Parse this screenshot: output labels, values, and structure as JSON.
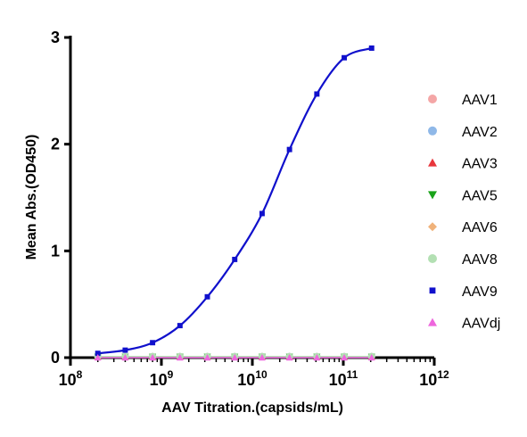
{
  "chart_data": {
    "type": "scatter",
    "title": "",
    "xlabel": "AAV Titration.(capsids/mL)",
    "ylabel": "Mean Abs.(OD450)",
    "xscale": "log",
    "xlim": [
      100000000,
      1000000000000
    ],
    "ylim": [
      0,
      3
    ],
    "x_ticks": [
      {
        "base": "10",
        "exp": "8"
      },
      {
        "base": "10",
        "exp": "9"
      },
      {
        "base": "10",
        "exp": "10"
      },
      {
        "base": "10",
        "exp": "11"
      },
      {
        "base": "10",
        "exp": "12"
      }
    ],
    "y_ticks": [
      "0",
      "1",
      "2",
      "3"
    ],
    "grid": false,
    "legend_position": "right",
    "x": [
      200000000,
      400000000,
      800000000,
      1600000000,
      3200000000,
      6400000000,
      12800000000,
      25600000000,
      51200000000,
      102400000000,
      204800000000
    ],
    "series": [
      {
        "name": "AAV1",
        "color": "#f4a6a6",
        "marker": "circle",
        "values": [
          0.01,
          0.01,
          0.01,
          0.01,
          0.01,
          0.01,
          0.01,
          0.01,
          0.01,
          0.01,
          0.01
        ]
      },
      {
        "name": "AAV2",
        "color": "#8fb8e8",
        "marker": "circle",
        "values": [
          0.01,
          0.01,
          0.01,
          0.01,
          0.01,
          0.01,
          0.01,
          0.01,
          0.01,
          0.01,
          0.01
        ]
      },
      {
        "name": "AAV3",
        "color": "#e8363c",
        "marker": "triangle-up",
        "values": [
          0.01,
          0.01,
          0.01,
          0.01,
          0.01,
          0.01,
          0.01,
          0.01,
          0.01,
          0.01,
          0.01
        ]
      },
      {
        "name": "AAV5",
        "color": "#19a319",
        "marker": "triangle-down",
        "values": [
          0.01,
          0.01,
          0.01,
          0.01,
          0.01,
          0.01,
          0.01,
          0.01,
          0.01,
          0.01,
          0.01
        ]
      },
      {
        "name": "AAV6",
        "color": "#f0b27a",
        "marker": "diamond",
        "values": [
          0.01,
          0.01,
          0.01,
          0.01,
          0.01,
          0.01,
          0.01,
          0.01,
          0.01,
          0.01,
          0.01
        ]
      },
      {
        "name": "AAV8",
        "color": "#b3e0b3",
        "marker": "circle",
        "values": [
          0.01,
          0.01,
          0.01,
          0.01,
          0.01,
          0.01,
          0.01,
          0.01,
          0.01,
          0.01,
          0.01
        ]
      },
      {
        "name": "AAV9",
        "color": "#1010cc",
        "marker": "square",
        "fit": true,
        "values": [
          0.04,
          0.07,
          0.14,
          0.3,
          0.57,
          0.92,
          1.35,
          1.95,
          2.47,
          2.81,
          2.9
        ]
      },
      {
        "name": "AAVdj",
        "color": "#ee66dd",
        "marker": "triangle-up",
        "values": [
          0.0,
          0.0,
          0.0,
          0.0,
          0.0,
          0.0,
          0.0,
          0.0,
          0.0,
          0.0,
          0.0
        ]
      }
    ]
  }
}
